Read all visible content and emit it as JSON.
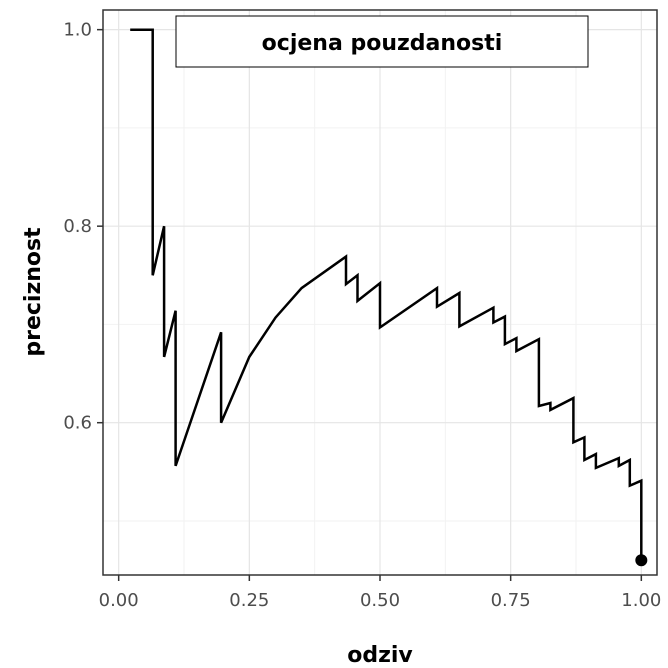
{
  "chart_data": {
    "type": "line",
    "title": "",
    "legend": {
      "label": "ocjena pouzdanosti",
      "placement": "top"
    },
    "xlabel": "odziv",
    "ylabel": "preciznost",
    "xlim": [
      -0.03,
      1.03
    ],
    "ylim": [
      0.445,
      1.02
    ],
    "x_ticks": [
      0.0,
      0.25,
      0.5,
      0.75,
      1.0
    ],
    "x_tick_labels": [
      "0.00",
      "0.25",
      "0.50",
      "0.75",
      "1.00"
    ],
    "y_ticks": [
      0.6,
      0.8,
      1.0
    ],
    "y_tick_labels": [
      "0.6",
      "0.8",
      "1.0"
    ],
    "grid": true,
    "line_color": "#000000",
    "series": [
      {
        "points": [
          [
            0.022,
            1.0
          ],
          [
            0.065,
            1.0
          ],
          [
            0.065,
            0.75
          ],
          [
            0.087,
            0.8
          ],
          [
            0.087,
            0.667
          ],
          [
            0.109,
            0.714
          ],
          [
            0.109,
            0.556
          ],
          [
            0.196,
            0.692
          ],
          [
            0.196,
            0.6
          ],
          [
            0.25,
            0.667
          ],
          [
            0.3,
            0.707
          ],
          [
            0.35,
            0.737
          ],
          [
            0.435,
            0.769
          ],
          [
            0.435,
            0.741
          ],
          [
            0.457,
            0.75
          ],
          [
            0.457,
            0.724
          ],
          [
            0.5,
            0.742
          ],
          [
            0.5,
            0.697
          ],
          [
            0.609,
            0.737
          ],
          [
            0.609,
            0.718
          ],
          [
            0.652,
            0.732
          ],
          [
            0.652,
            0.698
          ],
          [
            0.717,
            0.717
          ],
          [
            0.717,
            0.702
          ],
          [
            0.739,
            0.708
          ],
          [
            0.739,
            0.68
          ],
          [
            0.761,
            0.686
          ],
          [
            0.761,
            0.673
          ],
          [
            0.804,
            0.685
          ],
          [
            0.804,
            0.617
          ],
          [
            0.826,
            0.62
          ],
          [
            0.826,
            0.613
          ],
          [
            0.87,
            0.625
          ],
          [
            0.87,
            0.58
          ],
          [
            0.891,
            0.585
          ],
          [
            0.891,
            0.562
          ],
          [
            0.913,
            0.568
          ],
          [
            0.913,
            0.554
          ],
          [
            0.957,
            0.564
          ],
          [
            0.957,
            0.556
          ],
          [
            0.978,
            0.562
          ],
          [
            0.978,
            0.536
          ],
          [
            1.0,
            0.541
          ],
          [
            1.0,
            0.46
          ]
        ],
        "end_point": [
          1.0,
          0.46
        ]
      }
    ]
  }
}
